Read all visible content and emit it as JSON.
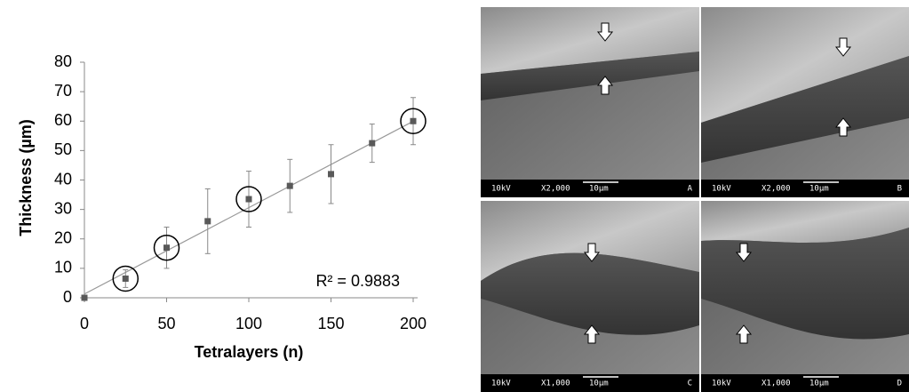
{
  "chart_data": {
    "type": "scatter",
    "x_label": "Tetralayers (n)",
    "y_label": "Thickness (µm)",
    "annotation": "R² = 0.9883",
    "x": [
      0,
      25,
      50,
      75,
      100,
      125,
      150,
      175,
      200
    ],
    "values": [
      0,
      6.5,
      17,
      26,
      33.5,
      38,
      42,
      52.5,
      60
    ],
    "errors": [
      0,
      3,
      7,
      11,
      9.5,
      9,
      10,
      6.5,
      8
    ],
    "color": "#595959",
    "trendline": true,
    "circled_x": [
      25,
      50,
      100,
      200
    ],
    "xlim": [
      0,
      200
    ],
    "xticks": [
      0,
      50,
      100,
      150,
      200
    ],
    "ylim": [
      0,
      80
    ],
    "yticks": [
      0,
      10,
      20,
      30,
      40,
      50,
      60,
      70,
      80
    ],
    "grid": false
  },
  "images": [
    {
      "voltage": "10kV",
      "magnification": "X2,000",
      "scale": "10µm",
      "label": "A"
    },
    {
      "voltage": "10kV",
      "magnification": "X2,000",
      "scale": "10µm",
      "label": "B"
    },
    {
      "voltage": "10kV",
      "magnification": "X1,000",
      "scale": "10µm",
      "label": "C"
    },
    {
      "voltage": "10kV",
      "magnification": "X1,000",
      "scale": "10µm",
      "label": "D"
    }
  ]
}
